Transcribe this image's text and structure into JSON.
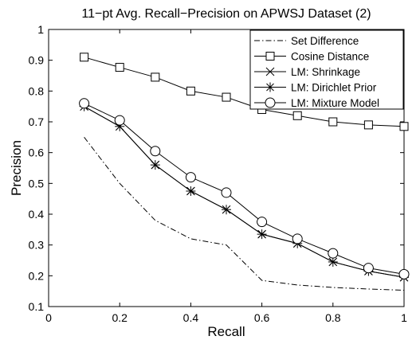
{
  "chart_data": {
    "type": "line",
    "title": "11−pt Avg. Recall−Precision on APWSJ Dataset (2)",
    "xlabel": "Recall",
    "ylabel": "Precision",
    "xlim": [
      0,
      1
    ],
    "ylim": [
      0.1,
      1
    ],
    "xticks": [
      0,
      0.2,
      0.4,
      0.6,
      0.8,
      1
    ],
    "xtick_labels": [
      "0",
      "0.2",
      "0.4",
      "0.6",
      "0.8",
      "1"
    ],
    "yticks": [
      0.1,
      0.2,
      0.3,
      0.4,
      0.5,
      0.6,
      0.7,
      0.8,
      0.9,
      1
    ],
    "ytick_labels": [
      "0.1",
      "0.2",
      "0.3",
      "0.4",
      "0.5",
      "0.6",
      "0.7",
      "0.8",
      "0.9",
      "1"
    ],
    "grid": false,
    "legend_position": "top-right",
    "x": [
      0.1,
      0.2,
      0.3,
      0.4,
      0.5,
      0.6,
      0.7,
      0.8,
      0.9,
      1.0
    ],
    "series": [
      {
        "name": "Set Difference",
        "line": "dashdot",
        "marker": "none",
        "color": "#000000",
        "values": [
          0.65,
          0.5,
          0.38,
          0.32,
          0.3,
          0.185,
          0.17,
          0.162,
          0.157,
          0.153
        ]
      },
      {
        "name": "Cosine Distance",
        "line": "solid",
        "marker": "square",
        "color": "#000000",
        "values": [
          0.91,
          0.877,
          0.845,
          0.8,
          0.78,
          0.74,
          0.72,
          0.7,
          0.69,
          0.685
        ]
      },
      {
        "name": "LM: Shrinkage",
        "line": "solid",
        "marker": "x",
        "color": "#000000",
        "values": [
          0.75,
          0.685,
          0.56,
          0.475,
          0.415,
          0.335,
          0.305,
          0.245,
          0.215,
          0.195
        ]
      },
      {
        "name": "LM: Dirichlet Prior",
        "line": "solid",
        "marker": "asterisk",
        "color": "#000000",
        "values": [
          0.75,
          0.685,
          0.56,
          0.475,
          0.415,
          0.335,
          0.305,
          0.245,
          0.215,
          0.195
        ]
      },
      {
        "name": "LM: Mixture Model",
        "line": "solid",
        "marker": "circle",
        "color": "#000000",
        "values": [
          0.76,
          0.705,
          0.605,
          0.52,
          0.47,
          0.375,
          0.32,
          0.273,
          0.225,
          0.205
        ]
      }
    ]
  }
}
